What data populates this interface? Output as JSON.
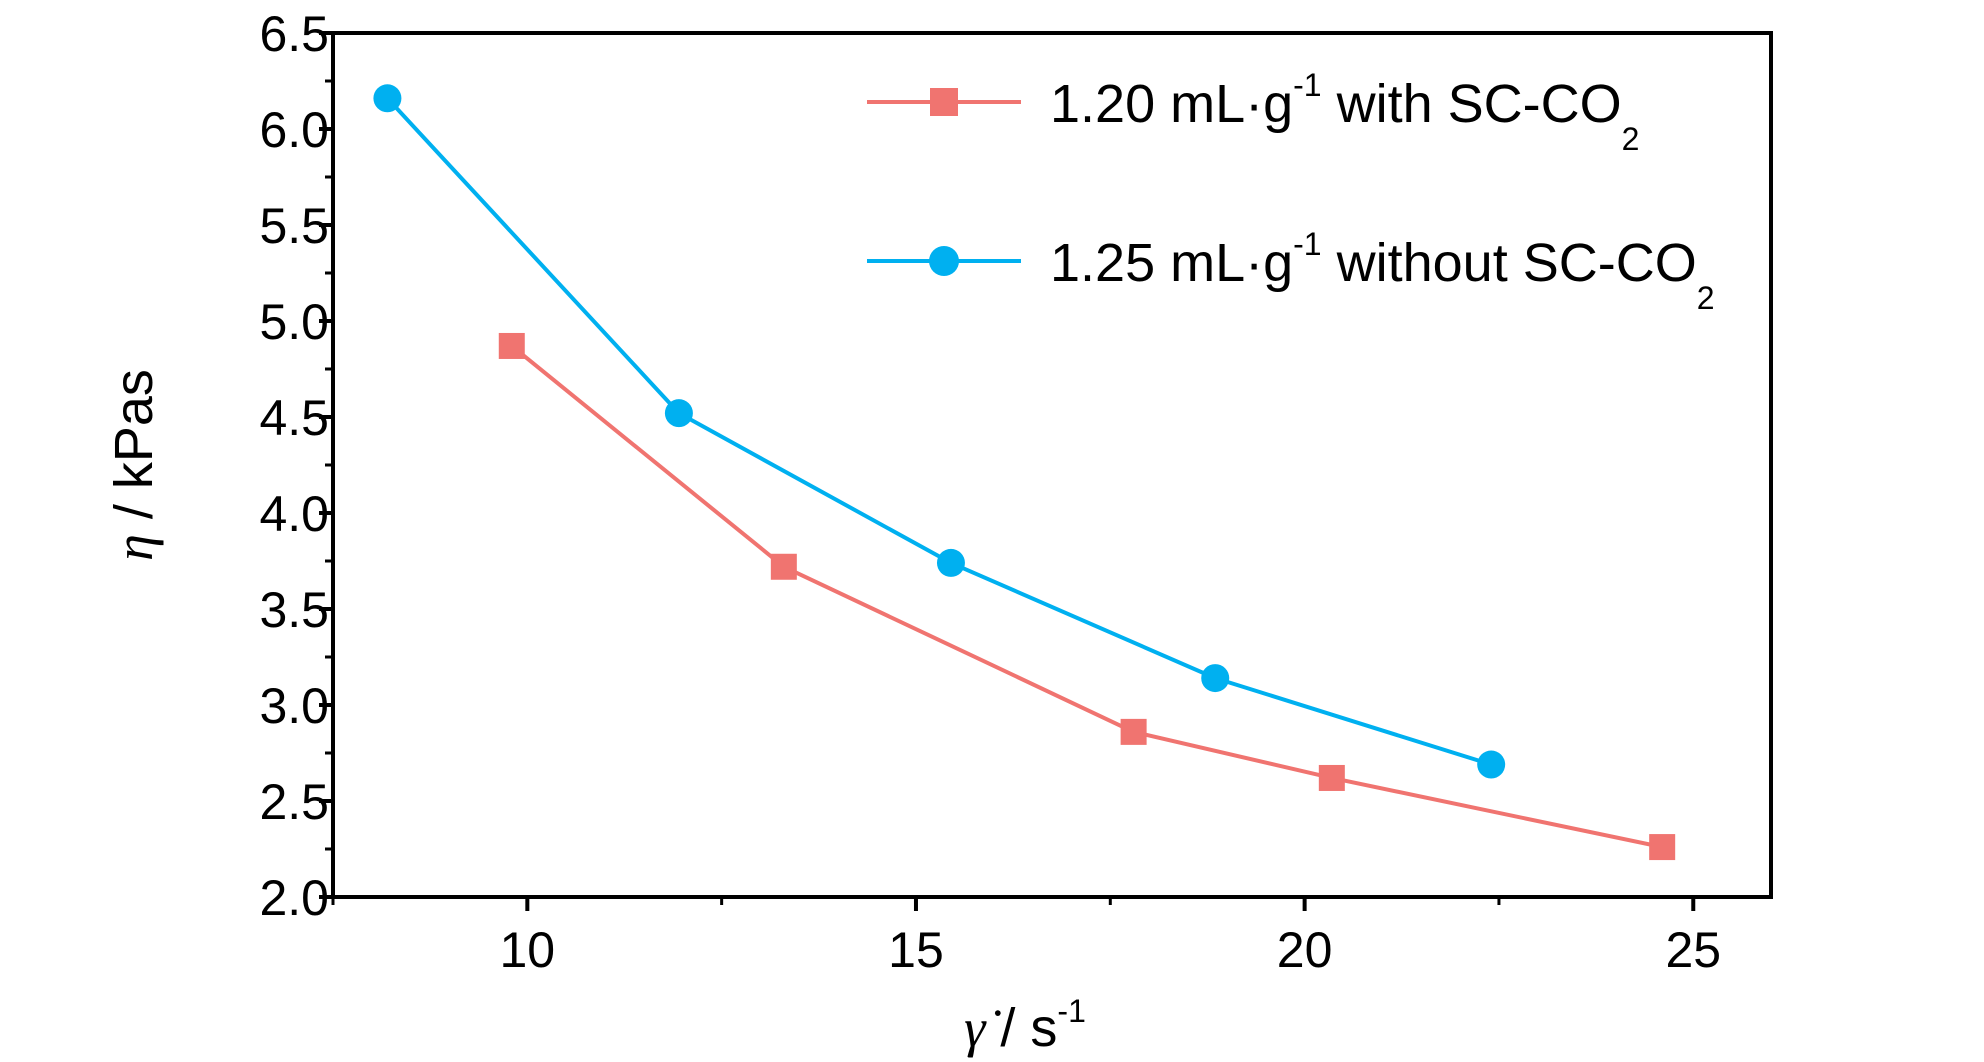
{
  "chart_data": {
    "type": "line",
    "xlabel": {
      "symbol": "γ̇",
      "text": " / s",
      "sup": "-1"
    },
    "ylabel": {
      "symbol": "η",
      "text": " / kPas"
    },
    "xlim": [
      7.5,
      26
    ],
    "ylim": [
      2.0,
      6.5
    ],
    "x_ticks": [
      "10",
      "15",
      "20",
      "25"
    ],
    "y_ticks": [
      "2.0",
      "2.5",
      "3.0",
      "3.5",
      "4.0",
      "4.5",
      "5.0",
      "5.5",
      "6.0",
      "6.5"
    ],
    "grid": false,
    "legend_position": "top-right",
    "series": [
      {
        "name": "1.20 mL·g-1 with SC-CO2",
        "legend": {
          "pre": "1.20 mL·g",
          "sup": "-1",
          "mid": " with SC-CO",
          "sub": "2"
        },
        "color": "#f07470",
        "marker": "square",
        "x": [
          9.8,
          13.3,
          17.8,
          20.35,
          24.6
        ],
        "y": [
          4.87,
          3.72,
          2.86,
          2.62,
          2.26
        ]
      },
      {
        "name": "1.25 mL·g-1 without SC-CO2",
        "legend": {
          "pre": "1.25 mL·g",
          "sup": "-1",
          "mid": " without SC-CO",
          "sub": "2"
        },
        "color": "#00b0f0",
        "marker": "circle",
        "x": [
          8.2,
          11.95,
          15.45,
          18.85,
          22.4
        ],
        "y": [
          6.16,
          4.52,
          3.74,
          3.14,
          2.69
        ]
      }
    ]
  }
}
